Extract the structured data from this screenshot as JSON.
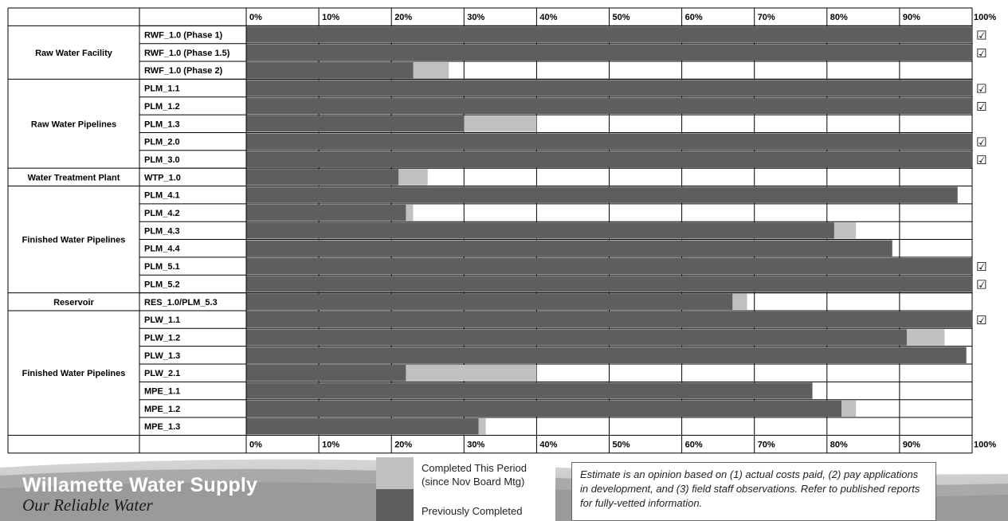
{
  "chart_data": {
    "type": "bar",
    "orientation": "horizontal",
    "stacked": true,
    "x_ticks": [
      "0%",
      "10%",
      "20%",
      "30%",
      "40%",
      "50%",
      "60%",
      "70%",
      "80%",
      "90%",
      "100%"
    ],
    "xlim": [
      0,
      100
    ],
    "grid": true,
    "series": [
      {
        "name": "Previously Completed",
        "color": "#5e5e5e"
      },
      {
        "name": "Completed This Period (since Nov Board Mtg)",
        "color": "#c0c0c0"
      }
    ],
    "check_symbol": "☑",
    "groups": [
      {
        "label": "Raw Water Facility",
        "rows": [
          {
            "label": "RWF_1.0 (Phase 1)",
            "prev": 100,
            "curr": 0,
            "complete": true
          },
          {
            "label": "RWF_1.0 (Phase 1.5)",
            "prev": 100,
            "curr": 0,
            "complete": true
          },
          {
            "label": "RWF_1.0 (Phase 2)",
            "prev": 23,
            "curr": 4.9,
            "complete": false
          }
        ]
      },
      {
        "label": "Raw Water Pipelines",
        "rows": [
          {
            "label": "PLM_1.1",
            "prev": 100,
            "curr": 0,
            "complete": true
          },
          {
            "label": "PLM_1.2",
            "prev": 100,
            "curr": 0,
            "complete": true
          },
          {
            "label": "PLM_1.3",
            "prev": 30,
            "curr": 10,
            "complete": false
          },
          {
            "label": "PLM_2.0",
            "prev": 100,
            "curr": 0,
            "complete": true
          },
          {
            "label": "PLM_3.0",
            "prev": 100,
            "curr": 0,
            "complete": true
          }
        ]
      },
      {
        "label": "Water Treatment Plant",
        "rows": [
          {
            "label": "WTP_1.0",
            "prev": 21,
            "curr": 4,
            "complete": false
          }
        ]
      },
      {
        "label": "Finished Water Pipelines",
        "rows": [
          {
            "label": "PLM_4.1",
            "prev": 98,
            "curr": 0,
            "complete": false
          },
          {
            "label": "PLM_4.2",
            "prev": 22,
            "curr": 1,
            "complete": false
          },
          {
            "label": "PLM_4.3",
            "prev": 81,
            "curr": 3,
            "complete": false
          },
          {
            "label": "PLM_4.4",
            "prev": 89,
            "curr": 0,
            "complete": false
          },
          {
            "label": "PLM_5.1",
            "prev": 100,
            "curr": 0,
            "complete": true
          },
          {
            "label": "PLM_5.2",
            "prev": 100,
            "curr": 0,
            "complete": true
          }
        ]
      },
      {
        "label": "Reservoir",
        "rows": [
          {
            "label": "RES_1.0/PLM_5.3",
            "prev": 67,
            "curr": 2,
            "complete": false
          }
        ]
      },
      {
        "label": "Finished Water Pipelines",
        "rows": [
          {
            "label": "PLW_1.1",
            "prev": 100,
            "curr": 0,
            "complete": true
          },
          {
            "label": "PLW_1.2",
            "prev": 91,
            "curr": 5.2,
            "complete": false
          },
          {
            "label": "PLW_1.3",
            "prev": 99.2,
            "curr": 0,
            "complete": false
          },
          {
            "label": "PLW_2.1",
            "prev": 22,
            "curr": 18,
            "complete": false
          },
          {
            "label": "MPE_1.1",
            "prev": 78,
            "curr": 0,
            "complete": false
          },
          {
            "label": "MPE_1.2",
            "prev": 82,
            "curr": 2,
            "complete": false
          },
          {
            "label": "MPE_1.3",
            "prev": 32,
            "curr": 1,
            "complete": false
          }
        ]
      }
    ]
  },
  "legend": {
    "current_label_line1": "Completed This Period",
    "current_label_line2": "(since Nov Board Mtg)",
    "previous_label": "Previously Completed"
  },
  "brand": {
    "name": "Willamette Water Supply",
    "tagline": "Our Reliable Water"
  },
  "note": {
    "text": "Estimate is an opinion based on (1) actual costs paid, (2) pay applications in development, and (3) field staff observations. Refer to published reports for fully-vetted information."
  }
}
